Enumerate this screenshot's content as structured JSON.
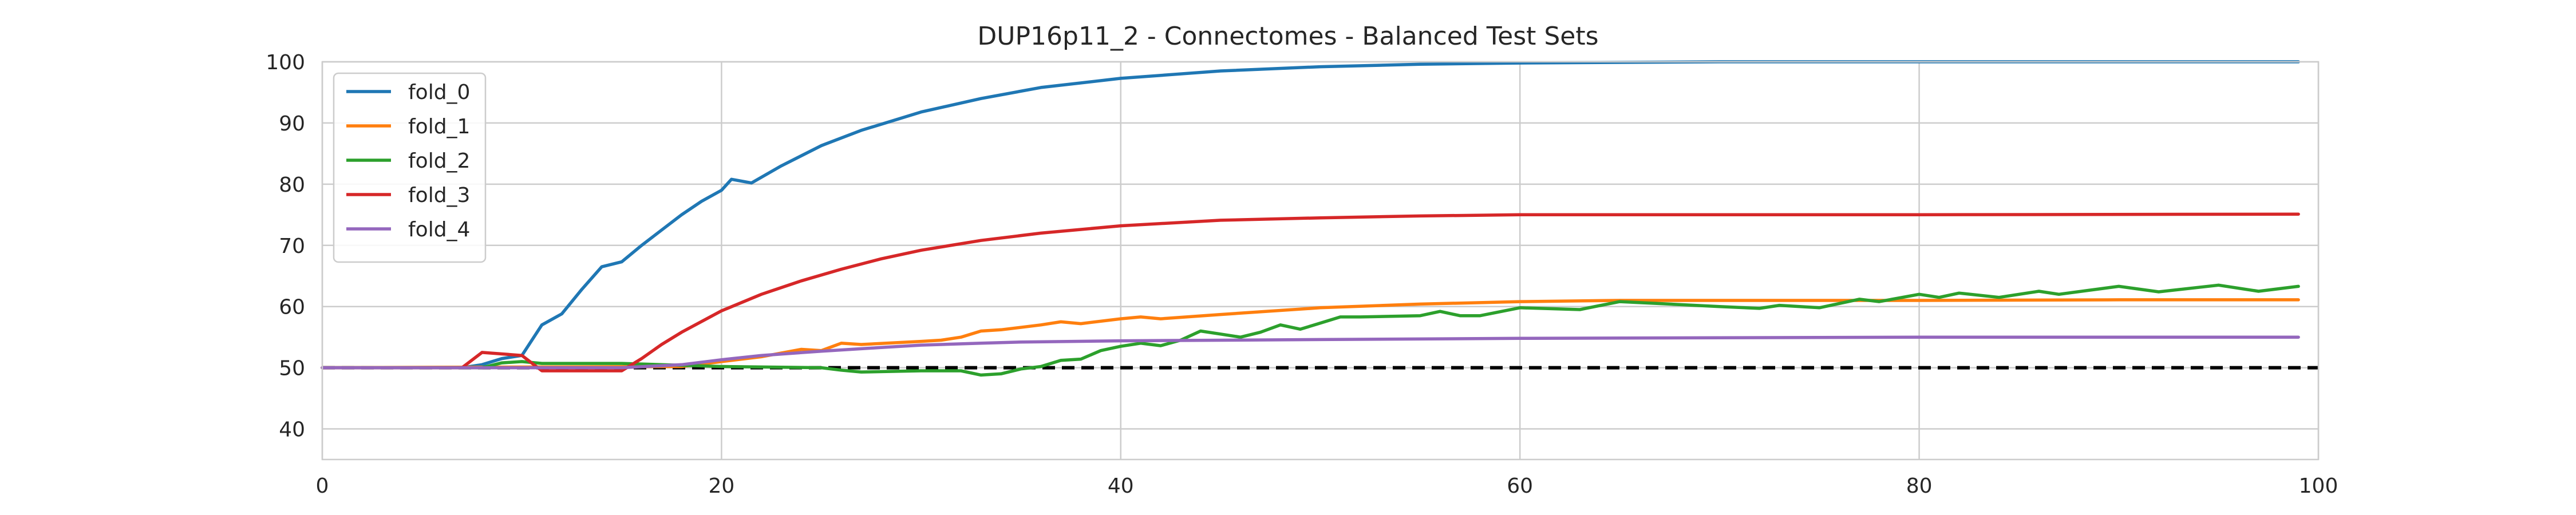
{
  "chart_data": {
    "type": "line",
    "title": "DUP16p11_2 - Connectomes - Balanced Test Sets",
    "xlabel": "",
    "ylabel": "",
    "xlim": [
      0,
      100
    ],
    "ylim": [
      35,
      100
    ],
    "xticks": [
      0,
      20,
      40,
      60,
      80,
      100
    ],
    "yticks": [
      40,
      50,
      60,
      70,
      80,
      90,
      100
    ],
    "grid": true,
    "legend_position": "upper-left",
    "reference_line": {
      "y": 50,
      "style": "dashed",
      "color": "#000000"
    },
    "series": [
      {
        "name": "fold_0",
        "color": "#1f77b4",
        "points": [
          [
            0,
            50
          ],
          [
            7,
            50
          ],
          [
            8,
            50.5
          ],
          [
            9,
            51.5
          ],
          [
            10,
            52
          ],
          [
            11,
            57
          ],
          [
            12,
            58.8
          ],
          [
            13,
            62.8
          ],
          [
            14,
            66.5
          ],
          [
            15,
            67.3
          ],
          [
            16,
            70
          ],
          [
            17,
            72.5
          ],
          [
            18,
            75
          ],
          [
            19,
            77.2
          ],
          [
            20,
            79
          ],
          [
            20.5,
            80.8
          ],
          [
            21.5,
            80.2
          ],
          [
            23,
            83
          ],
          [
            25,
            86.3
          ],
          [
            27,
            88.8
          ],
          [
            30,
            91.8
          ],
          [
            33,
            94
          ],
          [
            36,
            95.8
          ],
          [
            40,
            97.3
          ],
          [
            45,
            98.5
          ],
          [
            50,
            99.2
          ],
          [
            55,
            99.6
          ],
          [
            60,
            99.8
          ],
          [
            70,
            100
          ],
          [
            80,
            100
          ],
          [
            99,
            100
          ]
        ]
      },
      {
        "name": "fold_1",
        "color": "#ff7f0e",
        "points": [
          [
            0,
            50
          ],
          [
            18,
            50.2
          ],
          [
            20,
            51
          ],
          [
            22,
            51.8
          ],
          [
            24,
            53
          ],
          [
            25,
            52.8
          ],
          [
            26,
            54
          ],
          [
            27,
            53.8
          ],
          [
            30,
            54.3
          ],
          [
            31,
            54.5
          ],
          [
            32,
            55
          ],
          [
            33,
            56
          ],
          [
            34,
            56.2
          ],
          [
            36,
            57
          ],
          [
            37,
            57.5
          ],
          [
            38,
            57.2
          ],
          [
            40,
            58
          ],
          [
            41,
            58.3
          ],
          [
            42,
            58
          ],
          [
            45,
            58.7
          ],
          [
            50,
            59.8
          ],
          [
            55,
            60.4
          ],
          [
            60,
            60.8
          ],
          [
            65,
            61
          ],
          [
            70,
            61
          ],
          [
            80,
            61
          ],
          [
            90,
            61.1
          ],
          [
            99,
            61.1
          ]
        ]
      },
      {
        "name": "fold_2",
        "color": "#2ca02c",
        "points": [
          [
            0,
            50
          ],
          [
            8,
            50
          ],
          [
            9,
            50.8
          ],
          [
            10,
            51
          ],
          [
            11,
            50.7
          ],
          [
            15,
            50.7
          ],
          [
            20,
            50.2
          ],
          [
            25,
            50
          ],
          [
            26,
            49.6
          ],
          [
            27,
            49.3
          ],
          [
            30,
            49.5
          ],
          [
            32,
            49.5
          ],
          [
            33,
            48.8
          ],
          [
            34,
            49
          ],
          [
            35,
            49.8
          ],
          [
            36,
            50.2
          ],
          [
            37,
            51.2
          ],
          [
            38,
            51.4
          ],
          [
            39,
            52.8
          ],
          [
            40,
            53.5
          ],
          [
            41,
            54
          ],
          [
            42,
            53.6
          ],
          [
            43,
            54.5
          ],
          [
            44,
            56
          ],
          [
            45,
            55.5
          ],
          [
            46,
            55
          ],
          [
            47,
            55.8
          ],
          [
            48,
            57
          ],
          [
            49,
            56.3
          ],
          [
            50,
            57.3
          ],
          [
            51,
            58.3
          ],
          [
            52,
            58.3
          ],
          [
            55,
            58.5
          ],
          [
            56,
            59.2
          ],
          [
            57,
            58.5
          ],
          [
            58,
            58.5
          ],
          [
            60,
            59.8
          ],
          [
            63,
            59.5
          ],
          [
            65,
            60.8
          ],
          [
            70,
            60
          ],
          [
            72,
            59.7
          ],
          [
            73,
            60.2
          ],
          [
            75,
            59.8
          ],
          [
            77,
            61.2
          ],
          [
            78,
            60.8
          ],
          [
            80,
            62
          ],
          [
            81,
            61.5
          ],
          [
            82,
            62.2
          ],
          [
            84,
            61.5
          ],
          [
            86,
            62.5
          ],
          [
            87,
            62
          ],
          [
            90,
            63.3
          ],
          [
            92,
            62.4
          ],
          [
            95,
            63.5
          ],
          [
            97,
            62.5
          ],
          [
            99,
            63.3
          ]
        ]
      },
      {
        "name": "fold_3",
        "color": "#d62728",
        "points": [
          [
            0,
            50
          ],
          [
            7,
            50
          ],
          [
            8,
            52.5
          ],
          [
            10,
            52
          ],
          [
            11,
            49.5
          ],
          [
            13,
            49.5
          ],
          [
            15,
            49.5
          ],
          [
            16,
            51.5
          ],
          [
            17,
            53.8
          ],
          [
            18,
            55.8
          ],
          [
            20,
            59.3
          ],
          [
            22,
            62
          ],
          [
            24,
            64.2
          ],
          [
            26,
            66.1
          ],
          [
            28,
            67.8
          ],
          [
            30,
            69.2
          ],
          [
            33,
            70.8
          ],
          [
            36,
            72
          ],
          [
            40,
            73.2
          ],
          [
            45,
            74.1
          ],
          [
            50,
            74.5
          ],
          [
            55,
            74.8
          ],
          [
            60,
            75
          ],
          [
            70,
            75
          ],
          [
            80,
            75
          ],
          [
            99,
            75.1
          ]
        ]
      },
      {
        "name": "fold_4",
        "color": "#9467bd",
        "points": [
          [
            0,
            50
          ],
          [
            15,
            50
          ],
          [
            18,
            50.5
          ],
          [
            20,
            51.3
          ],
          [
            22,
            52
          ],
          [
            25,
            52.7
          ],
          [
            28,
            53.3
          ],
          [
            30,
            53.7
          ],
          [
            33,
            54
          ],
          [
            35,
            54.2
          ],
          [
            40,
            54.4
          ],
          [
            50,
            54.6
          ],
          [
            60,
            54.8
          ],
          [
            70,
            54.9
          ],
          [
            80,
            55
          ],
          [
            99,
            55
          ]
        ]
      }
    ]
  }
}
